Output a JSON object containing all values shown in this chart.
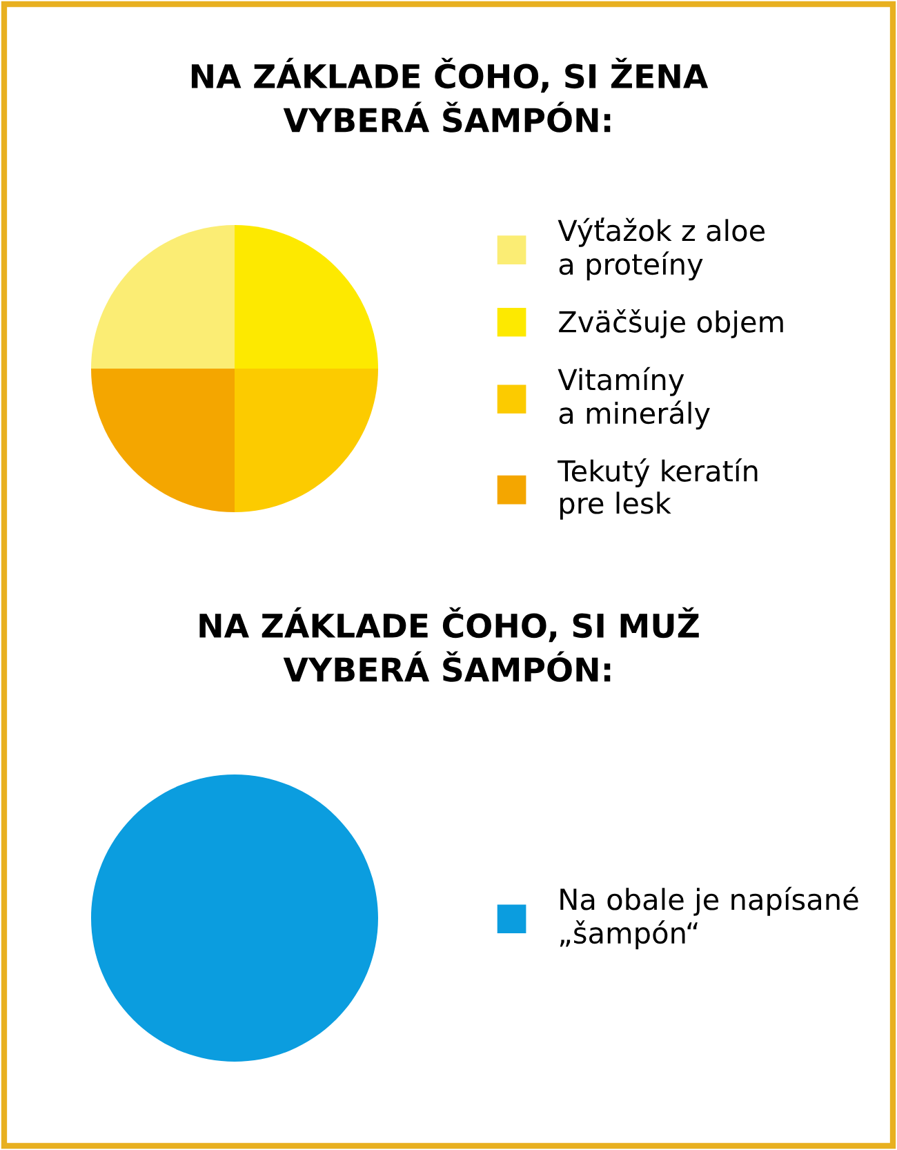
{
  "chart_data": [
    {
      "type": "pie",
      "title": "NA ZÁKLADE ČOHO, SI ŽENA\nVYBERÁ ŠAMPÓN:",
      "categories": [
        "Výťažok z aloe\na proteíny",
        "Zväčšuje objem",
        "Vitamíny\na minerály",
        "Tekutý keratín\npre lesk"
      ],
      "values": [
        25,
        25,
        25,
        25
      ],
      "colors": [
        "#fbed74",
        "#fde900",
        "#fccb00",
        "#f4a600"
      ],
      "legend": "right"
    },
    {
      "type": "pie",
      "title": "NA ZÁKLADE ČOHO, SI MUŽ\nVYBERÁ ŠAMPÓN:",
      "categories": [
        "Na obale je napísané\n„šampón“"
      ],
      "values": [
        100
      ],
      "colors": [
        "#0b9ddf"
      ],
      "legend": "right"
    }
  ]
}
